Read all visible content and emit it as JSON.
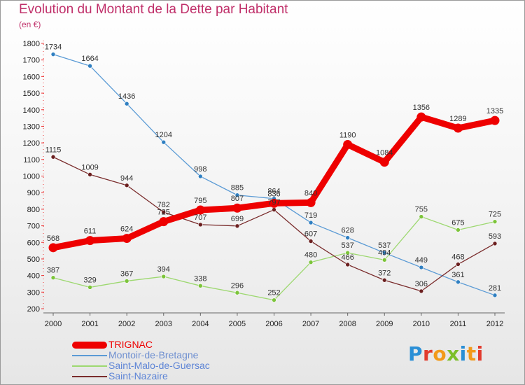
{
  "header": {
    "title": "Evolution du Montant de la Dette par Habitant",
    "unit": "(en €)"
  },
  "logo": {
    "letters": [
      {
        "ch": "P",
        "color": "#2a8fd6"
      },
      {
        "ch": "r",
        "color": "#e23b2e"
      },
      {
        "ch": "o",
        "color": "#f29a1a"
      },
      {
        "ch": "x",
        "color": "#7cbf2a"
      },
      {
        "ch": "i",
        "color": "#2a8fd6"
      },
      {
        "ch": "t",
        "color": "#f29a1a"
      },
      {
        "ch": "i",
        "color": "#e23b2e"
      }
    ]
  },
  "chart_data": {
    "type": "line",
    "title": "Evolution du Montant de la Dette par Habitant",
    "ylabel": "(en €)",
    "xlabel": "",
    "x": [
      "2000",
      "2001",
      "2002",
      "2003",
      "2004",
      "2005",
      "2006",
      "2007",
      "2008",
      "2009",
      "2010",
      "2011",
      "2012"
    ],
    "ylim": [
      200,
      1800
    ],
    "yticks": [
      200,
      300,
      400,
      500,
      600,
      700,
      800,
      900,
      1000,
      1100,
      1200,
      1300,
      1400,
      1500,
      1600,
      1700,
      1800
    ],
    "grid": false,
    "legend_position": "bottom-left",
    "series": [
      {
        "name": "Montoir-de-Bretagne",
        "color": "#5b9bd5",
        "marker": "#2f7fc1",
        "values": [
          1734,
          1664,
          1436,
          1204,
          998,
          885,
          864,
          719,
          628,
          537,
          449,
          361,
          281
        ]
      },
      {
        "name": "Saint-Malo-de-Guersac",
        "color": "#9dd870",
        "marker": "#7cc43a",
        "values": [
          387,
          329,
          367,
          394,
          338,
          296,
          252,
          480,
          537,
          494,
          755,
          675,
          725
        ]
      },
      {
        "name": "Saint-Nazaire",
        "color": "#7a2c2c",
        "marker": "#6b1f1f",
        "values": [
          1115,
          1009,
          944,
          782,
          707,
          699,
          797,
          607,
          466,
          372,
          306,
          468,
          593
        ]
      },
      {
        "name": "TRIGNAC",
        "color": "#ee0000",
        "marker": "#ee0000",
        "values": [
          568,
          611,
          624,
          725,
          795,
          807,
          836,
          840,
          1190,
          1084,
          1356,
          1289,
          1335
        ]
      }
    ],
    "data_labels": [
      [
        1734,
        1664,
        1436,
        1204,
        998,
        885,
        864,
        719,
        628,
        537,
        449,
        361,
        281
      ],
      [
        387,
        329,
        367,
        394,
        338,
        296,
        252,
        480,
        537,
        494,
        755,
        675,
        725
      ],
      [
        1115,
        1009,
        944,
        782,
        707,
        699,
        797,
        607,
        466,
        372,
        306,
        468,
        593
      ],
      [
        568,
        611,
        624,
        725,
        795,
        807,
        836,
        840,
        1190,
        1084,
        1356,
        1289,
        1335
      ]
    ],
    "legend_order": [
      "TRIGNAC",
      "Montoir-de-Bretagne",
      "Saint-Malo-de-Guersac",
      "Saint-Nazaire"
    ],
    "legend_colors": {
      "TRIGNAC": "#ee0000",
      "Montoir-de-Bretagne": "#6e8fd0",
      "Saint-Malo-de-Guersac": "#5e85d6",
      "Saint-Nazaire": "#5e85d6"
    }
  }
}
